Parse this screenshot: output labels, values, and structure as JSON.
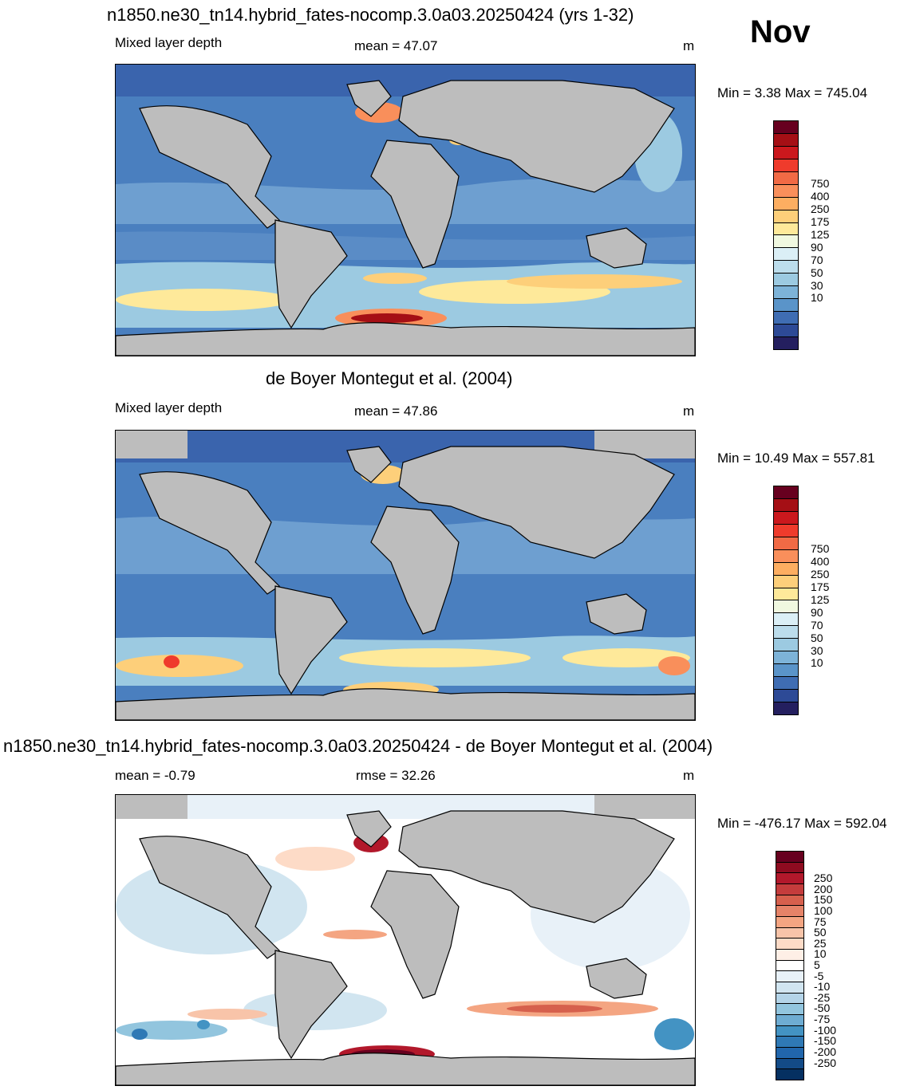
{
  "month": "Nov",
  "panels": [
    {
      "title": "n1850.ne30_tn14.hybrid_fates-nocomp.3.0a03.20250424 (yrs 1-32)",
      "left": "Mixed layer depth",
      "center": "mean =  47.07",
      "unit": "m",
      "minmax": "Min =   3.38 Max = 745.04",
      "colorbar": {
        "colors": [
          "#67001f",
          "#a50f15",
          "#cb181d",
          "#ef3b2c",
          "#f16a45",
          "#f98f5b",
          "#fdae61",
          "#fdcf7a",
          "#fee99a",
          "#f0f8e0",
          "#dbeff6",
          "#bcddec",
          "#9ccae1",
          "#7db3d8",
          "#5a94c9",
          "#3f6db3",
          "#2d4a96",
          "#241f5f"
        ],
        "labels": [
          "750",
          "400",
          "250",
          "175",
          "125",
          "90",
          "70",
          "50",
          "30",
          "10"
        ]
      }
    },
    {
      "title": "de Boyer Montegut et al. (2004)",
      "left": "Mixed layer depth",
      "center": "mean =  47.86",
      "unit": "m",
      "minmax": "Min =  10.49 Max = 557.81",
      "colorbar": {
        "colors": [
          "#67001f",
          "#a50f15",
          "#cb181d",
          "#ef3b2c",
          "#f16a45",
          "#f98f5b",
          "#fdae61",
          "#fdcf7a",
          "#fee99a",
          "#f0f8e0",
          "#dbeff6",
          "#bcddec",
          "#9ccae1",
          "#7db3d8",
          "#5a94c9",
          "#3f6db3",
          "#2d4a96",
          "#241f5f"
        ],
        "labels": [
          "750",
          "400",
          "250",
          "175",
          "125",
          "90",
          "70",
          "50",
          "30",
          "10"
        ]
      }
    },
    {
      "title": "n1850.ne30_tn14.hybrid_fates-nocomp.3.0a03.20250424 - de Boyer Montegut et al. (2004)",
      "left": "mean =  -0.79",
      "center": "rmse =  32.26",
      "unit": "m",
      "minmax": "Min = -476.17 Max = 592.04",
      "colorbar": {
        "colors": [
          "#67001f",
          "#8e0b20",
          "#b2182b",
          "#c43c3c",
          "#d6604d",
          "#e58368",
          "#f4a582",
          "#f8c4a9",
          "#fddbc7",
          "#feefe6",
          "#ffffff",
          "#e8f1f8",
          "#d1e5f0",
          "#b4d4e8",
          "#92c5de",
          "#6eacd2",
          "#4393c3",
          "#2f79b5",
          "#2166ac",
          "#134b87",
          "#053061"
        ],
        "labels": [
          "250",
          "200",
          "150",
          "100",
          "75",
          "50",
          "25",
          "10",
          "5",
          "-5",
          "-10",
          "-25",
          "-50",
          "-75",
          "-100",
          "-150",
          "-200",
          "-250"
        ]
      }
    }
  ]
}
